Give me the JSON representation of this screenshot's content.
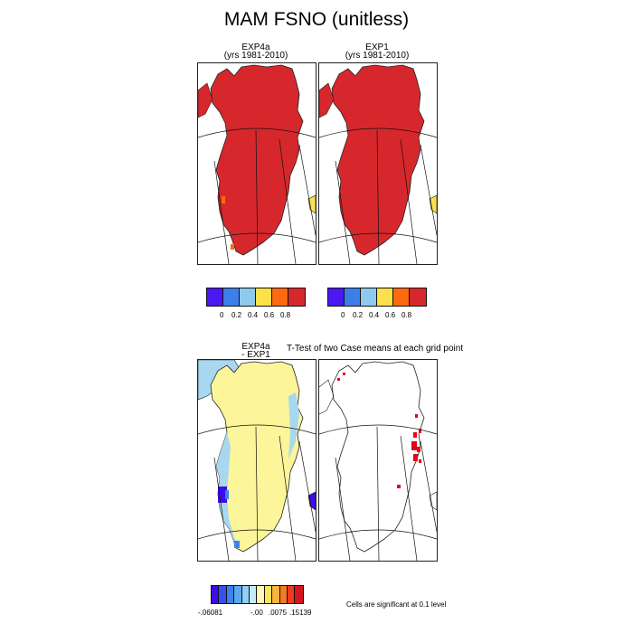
{
  "title": "MAM FSNO (unitless)",
  "panels": [
    {
      "name": "EXP4a",
      "subtitle": "(yrs 1981-2010)"
    },
    {
      "name": "EXP1",
      "subtitle": "(yrs 1981-2010)"
    }
  ],
  "diff": {
    "name": "EXP4a",
    "minus": "- EXP1"
  },
  "ttest_title": "T-Test of two Case means at each grid point",
  "significance_note": "Cells are significant at 0.1 level",
  "colorbar": {
    "colors": [
      "#4b17f2",
      "#3d7fe8",
      "#8fcaee",
      "#fde14a",
      "#fb6a0f",
      "#d6282c"
    ],
    "labels": [
      "0",
      "0.2",
      "0.4",
      "0.6",
      "0.8"
    ]
  },
  "diff_colorbar": {
    "colors": [
      "#3d0ce8",
      "#3550f0",
      "#3a83f0",
      "#5aa9f0",
      "#8fd0f4",
      "#c6ecf8",
      "#fff8b8",
      "#fde55a",
      "#fbb43a",
      "#f77a22",
      "#ef3a1c",
      "#d6141c"
    ],
    "labels": [
      "-.06081",
      "-.00",
      ".0075",
      ".15139"
    ]
  },
  "colors": {
    "land_fill": "#d6282c",
    "diff_fill": "#fdf59a",
    "diff_edge": "#a8d8ef",
    "diff_edge_blue": "#3a83f0",
    "diff_neg": "#3d0ce8",
    "significant": "#e6001a"
  }
}
